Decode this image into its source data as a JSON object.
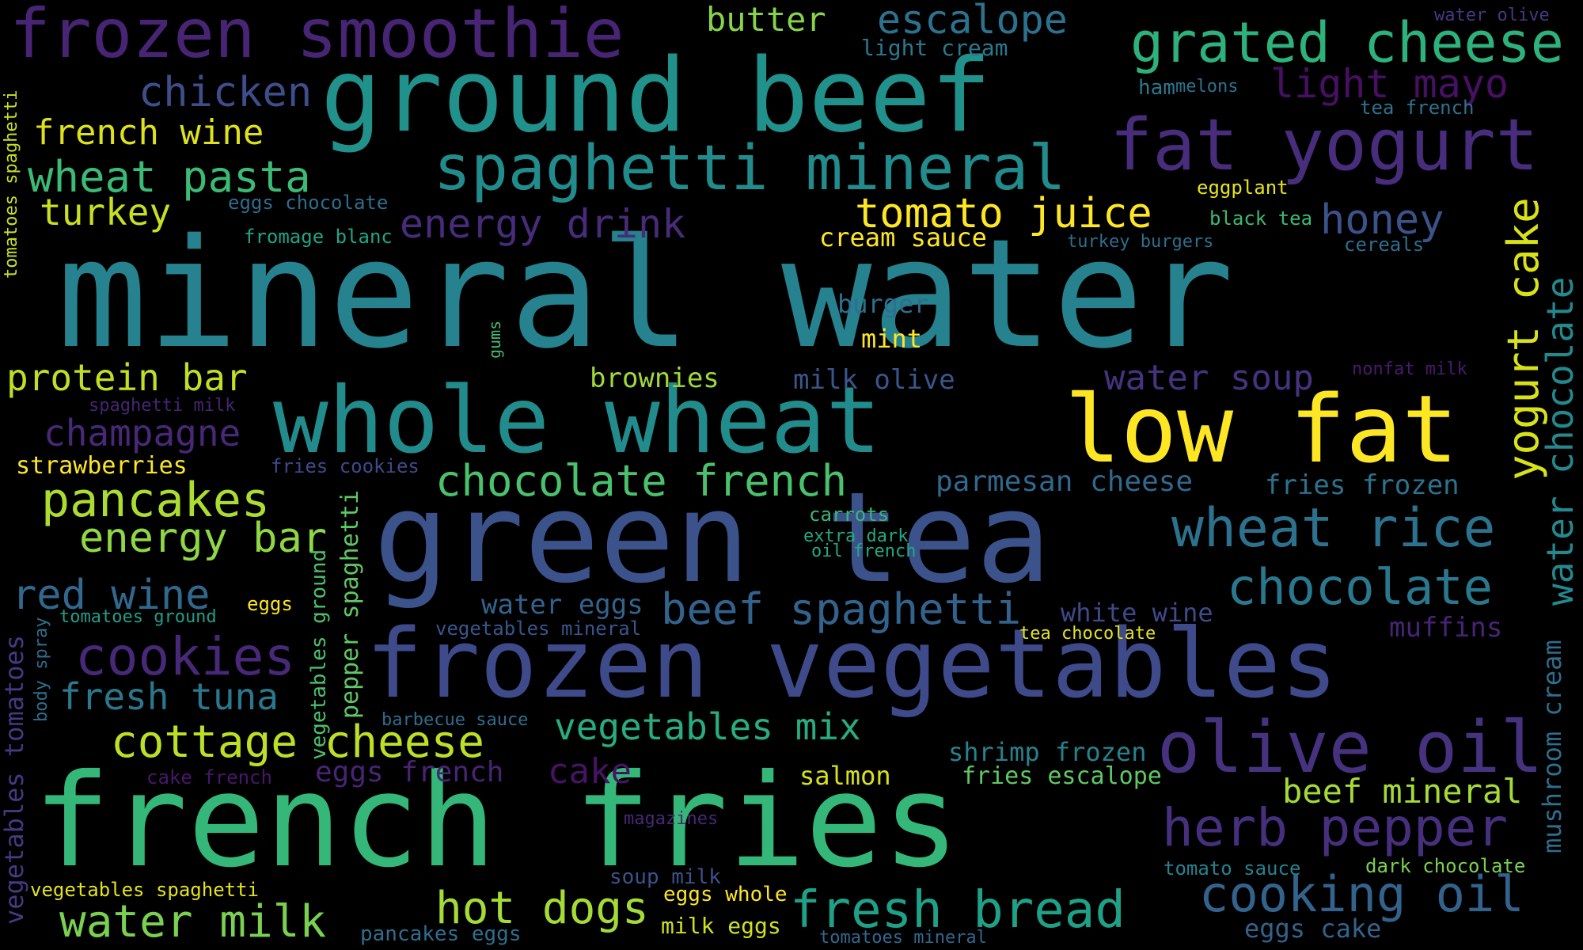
{
  "words": [
    {
      "text": "mineral water",
      "color": "#26828e"
    },
    {
      "text": "ground beef",
      "color": "#21918c"
    },
    {
      "text": "french fries",
      "color": "#35b779"
    },
    {
      "text": "green tea",
      "color": "#3b528b"
    },
    {
      "text": "whole wheat",
      "color": "#228c8d"
    },
    {
      "text": "frozen vegetables",
      "color": "#3e4a89"
    },
    {
      "text": "low fat",
      "color": "#fde725"
    },
    {
      "text": "frozen smoothie",
      "color": "#482475"
    },
    {
      "text": "fat yogurt",
      "color": "#472d7b"
    },
    {
      "text": "spaghetti mineral",
      "color": "#228c8d"
    },
    {
      "text": "grated cheese",
      "color": "#2db27d"
    },
    {
      "text": "olive oil",
      "color": "#46327e"
    },
    {
      "text": "wheat rice",
      "color": "#2c728e"
    },
    {
      "text": "chocolate french",
      "color": "#4ac16d"
    },
    {
      "text": "herb pepper",
      "color": "#46307e"
    },
    {
      "text": "cooking oil",
      "color": "#33638d"
    },
    {
      "text": "chocolate",
      "color": "#2a788e"
    },
    {
      "text": "beef spaghetti",
      "color": "#33638d"
    },
    {
      "text": "fresh bread",
      "color": "#1fa188"
    },
    {
      "text": "cookies",
      "color": "#482878"
    },
    {
      "text": "pancakes",
      "color": "#addc30"
    },
    {
      "text": "cottage cheese",
      "color": "#bddf26"
    },
    {
      "text": "water milk",
      "color": "#7ad151"
    },
    {
      "text": "hot dogs",
      "color": "#a5db36"
    },
    {
      "text": "tomato juice",
      "color": "#fde725"
    },
    {
      "text": "vegetables mix",
      "color": "#27ad81"
    },
    {
      "text": "energy drink",
      "color": "#472c7a"
    },
    {
      "text": "light mayo",
      "color": "#471063"
    },
    {
      "text": "wheat pasta",
      "color": "#3bbb75"
    },
    {
      "text": "energy bar",
      "color": "#8fd744"
    },
    {
      "text": "red wine",
      "color": "#31688e"
    },
    {
      "text": "chicken",
      "color": "#3d4e8a"
    },
    {
      "text": "french wine",
      "color": "#dde318"
    },
    {
      "text": "turkey",
      "color": "#c8e020"
    },
    {
      "text": "protein bar",
      "color": "#c2df23"
    },
    {
      "text": "fresh tuna",
      "color": "#2a788e"
    },
    {
      "text": "honey",
      "color": "#3b528b"
    },
    {
      "text": "escalope",
      "color": "#2c728e"
    },
    {
      "text": "butter",
      "color": "#86d549"
    },
    {
      "text": "champagne",
      "color": "#482878"
    },
    {
      "text": "water soup",
      "color": "#46327e"
    },
    {
      "text": "beef mineral",
      "color": "#a5db36"
    },
    {
      "text": "parmesan cheese",
      "color": "#31688e"
    },
    {
      "text": "fries frozen",
      "color": "#2c728e"
    },
    {
      "text": "cake",
      "color": "#471365"
    },
    {
      "text": "eggs french",
      "color": "#482475"
    },
    {
      "text": "shrimp frozen",
      "color": "#26828e"
    },
    {
      "text": "white wine",
      "color": "#3e4a89"
    },
    {
      "text": "muffins",
      "color": "#482475"
    },
    {
      "text": "brownies",
      "color": "#a0da39"
    },
    {
      "text": "milk olive",
      "color": "#39568c"
    },
    {
      "text": "salmon",
      "color": "#d8e219"
    },
    {
      "text": "fries escalope",
      "color": "#5ec962"
    },
    {
      "text": "water eggs",
      "color": "#33638d"
    },
    {
      "text": "burger",
      "color": "#2e6e8e"
    },
    {
      "text": "mint",
      "color": "#fde725"
    },
    {
      "text": "cream sauce",
      "color": "#fde725"
    },
    {
      "text": "strawberries",
      "color": "#fde725"
    },
    {
      "text": "eggs cake",
      "color": "#33638d"
    },
    {
      "text": "light cream",
      "color": "#2a788e"
    },
    {
      "text": "ham",
      "color": "#2a788e"
    },
    {
      "text": "melons",
      "color": "#2c728e"
    },
    {
      "text": "tea french",
      "color": "#2c728e"
    },
    {
      "text": "water olive",
      "color": "#443983"
    },
    {
      "text": "eggplant",
      "color": "#e5e419"
    },
    {
      "text": "black tea",
      "color": "#3bbb75"
    },
    {
      "text": "turkey burgers",
      "color": "#2e6e8e"
    },
    {
      "text": "cereals",
      "color": "#2e6e8e"
    },
    {
      "text": "nonfat milk",
      "color": "#481a6c"
    },
    {
      "text": "eggs chocolate",
      "color": "#2e6e8e"
    },
    {
      "text": "fromage blanc",
      "color": "#20a486"
    },
    {
      "text": "spaghetti milk",
      "color": "#482475"
    },
    {
      "text": "fries cookies",
      "color": "#3e4a89"
    },
    {
      "text": "carrots",
      "color": "#37b878"
    },
    {
      "text": "extra dark",
      "color": "#22a884"
    },
    {
      "text": "oil french",
      "color": "#22a884"
    },
    {
      "text": "tomatoes ground",
      "color": "#1f9e89"
    },
    {
      "text": "eggs",
      "color": "#fde725"
    },
    {
      "text": "vegetables mineral",
      "color": "#39568c"
    },
    {
      "text": "tea chocolate",
      "color": "#e5e419"
    },
    {
      "text": "barbecue sauce",
      "color": "#2e6e8e"
    },
    {
      "text": "cake french",
      "color": "#481769"
    },
    {
      "text": "magazines",
      "color": "#482878"
    },
    {
      "text": "soup milk",
      "color": "#3b528b"
    },
    {
      "text": "eggs whole",
      "color": "#fde725"
    },
    {
      "text": "milk eggs",
      "color": "#d0e11c"
    },
    {
      "text": "pancakes eggs",
      "color": "#2e6e8e"
    },
    {
      "text": "tomatoes mineral",
      "color": "#31688e"
    },
    {
      "text": "vegetables spaghetti",
      "color": "#e5e419"
    },
    {
      "text": "tomato sauce",
      "color": "#26828e"
    },
    {
      "text": "dark chocolate",
      "color": "#7ad151"
    },
    {
      "text": "yogurt cake",
      "color": "#d8e219"
    },
    {
      "text": "water chocolate",
      "color": "#23898e"
    },
    {
      "text": "mushroom cream",
      "color": "#2e6e8e"
    },
    {
      "text": "tomatoes spaghetti",
      "color": "#c8e020"
    },
    {
      "text": "vegetables tomatoes",
      "color": "#443983"
    },
    {
      "text": "body spray",
      "color": "#2e6e8e"
    },
    {
      "text": "vegetables ground",
      "color": "#4ac16d"
    },
    {
      "text": "pepper spaghetti",
      "color": "#5ec962"
    },
    {
      "text": "gums",
      "color": "#44bf70"
    }
  ]
}
